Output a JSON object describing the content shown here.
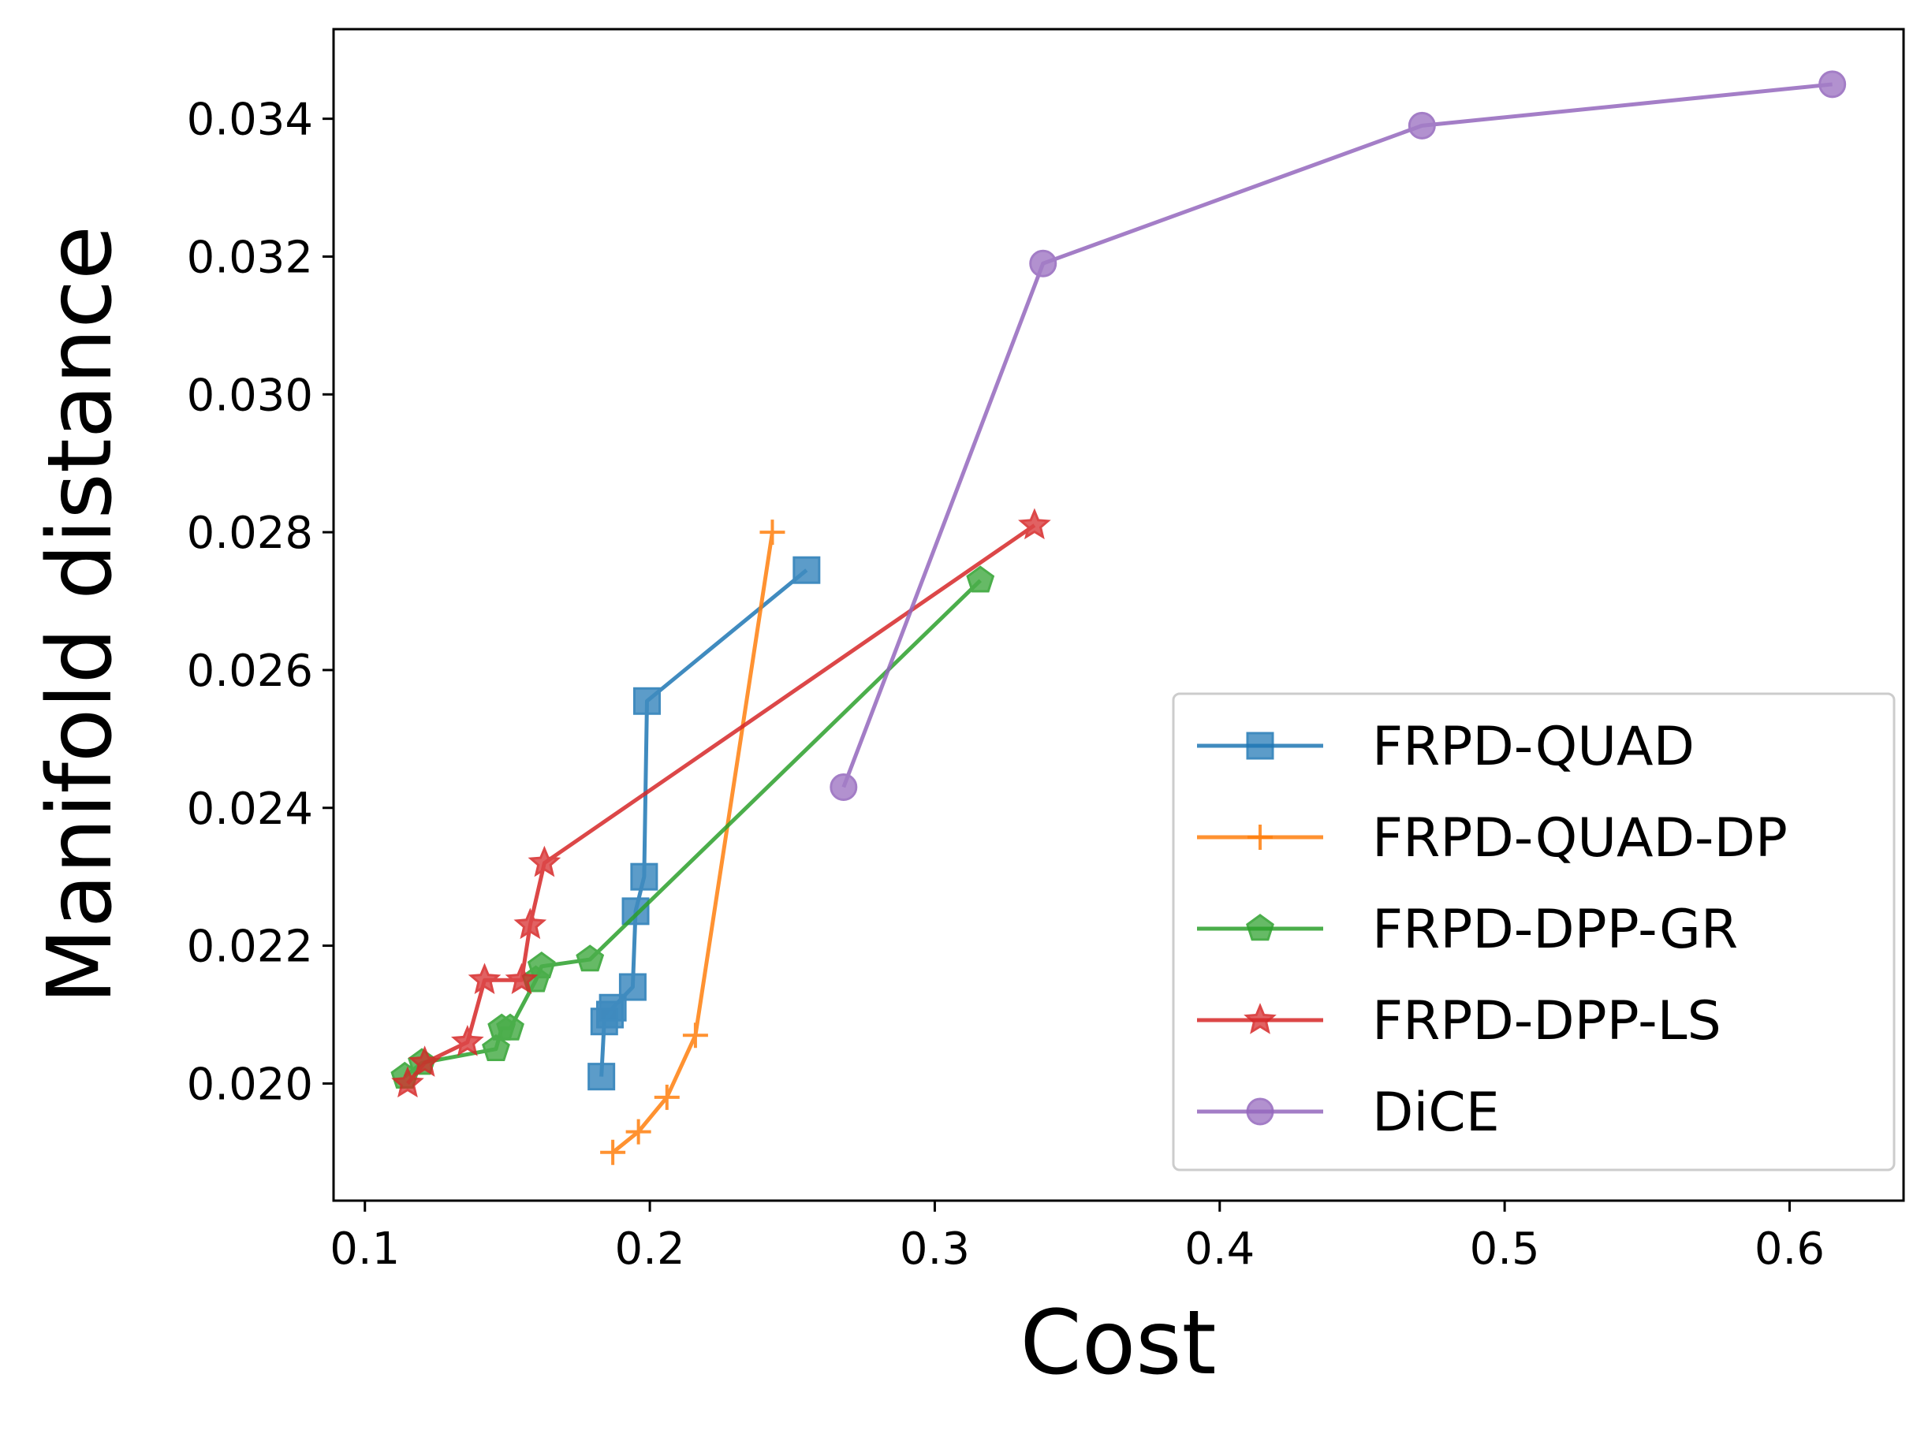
{
  "chart_data": {
    "type": "line",
    "title": "",
    "xlabel": "Cost",
    "ylabel": "Manifold distance",
    "xlim": [
      0.089,
      0.64
    ],
    "ylim": [
      0.0183,
      0.0353
    ],
    "xticks": [
      0.1,
      0.2,
      0.3,
      0.4,
      0.5,
      0.6
    ],
    "xtick_labels": [
      "0.1",
      "0.2",
      "0.3",
      "0.4",
      "0.5",
      "0.6"
    ],
    "yticks": [
      0.02,
      0.022,
      0.024,
      0.026,
      0.028,
      0.03,
      0.032,
      0.034
    ],
    "ytick_labels": [
      "0.020",
      "0.022",
      "0.024",
      "0.026",
      "0.028",
      "0.030",
      "0.032",
      "0.034"
    ],
    "grid": false,
    "legend_position": "bottom-right",
    "series": [
      {
        "name": "FRPD-QUAD",
        "color": "#1f77b4",
        "marker": "square",
        "x": [
          0.183,
          0.184,
          0.186,
          0.187,
          0.194,
          0.195,
          0.198,
          0.199,
          0.255
        ],
        "y": [
          0.0201,
          0.0209,
          0.021,
          0.0211,
          0.0214,
          0.0225,
          0.023,
          0.02555,
          0.02745
        ]
      },
      {
        "name": "FRPD-QUAD-DP",
        "color": "#ff7f0e",
        "marker": "plus",
        "x": [
          0.187,
          0.196,
          0.206,
          0.216,
          0.243
        ],
        "y": [
          0.019,
          0.0193,
          0.0198,
          0.0207,
          0.028
        ]
      },
      {
        "name": "FRPD-DPP-GR",
        "color": "#2ca02c",
        "marker": "pentagon",
        "x": [
          0.114,
          0.12,
          0.146,
          0.148,
          0.151,
          0.16,
          0.162,
          0.179,
          0.316
        ],
        "y": [
          0.0201,
          0.0203,
          0.0205,
          0.0208,
          0.0208,
          0.0215,
          0.0217,
          0.0218,
          0.0273
        ]
      },
      {
        "name": "FRPD-DPP-LS",
        "color": "#d62728",
        "marker": "star",
        "x": [
          0.115,
          0.121,
          0.136,
          0.142,
          0.155,
          0.158,
          0.163,
          0.335
        ],
        "y": [
          0.02,
          0.0203,
          0.0206,
          0.0215,
          0.0215,
          0.0223,
          0.0232,
          0.0281
        ]
      },
      {
        "name": "DiCE",
        "color": "#9467bd",
        "marker": "circle",
        "x": [
          0.268,
          0.338,
          0.471,
          0.615
        ],
        "y": [
          0.0243,
          0.0319,
          0.0339,
          0.0345
        ]
      }
    ]
  }
}
